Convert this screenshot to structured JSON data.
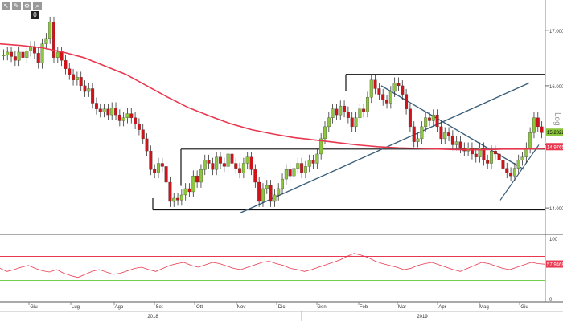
{
  "toolbar": {
    "icons": [
      "cursor-icon",
      "pencil-icon",
      "settings-icon",
      "zoom-icon"
    ],
    "glyphs": [
      "↖",
      "✎",
      "⚙",
      "⌕"
    ],
    "flag_label": "0"
  },
  "chart_data": {
    "type": "candlestick",
    "scale": "log",
    "scale_label": "Log",
    "price_axis": {
      "ticks": [
        "17.0000",
        "16.0000",
        "15.0000",
        "14.0000"
      ],
      "tick_values": [
        17.0,
        16.0,
        15.0,
        14.0
      ],
      "range": [
        13.65,
        17.45
      ]
    },
    "current_price_label": "15.2022",
    "ma_price_label": "14.9765",
    "x_axis": {
      "month_labels": [
        "Giu",
        "Lug",
        "Ago",
        "Set",
        "Ott",
        "Nov",
        "Dic",
        "Gen",
        "Feb",
        "Mar",
        "Apr",
        "Mag",
        "Giu"
      ],
      "year_labels": [
        "2018",
        "2019"
      ]
    },
    "ohlc_closes_approx": [
      16.55,
      16.6,
      16.52,
      16.45,
      16.6,
      16.5,
      16.62,
      16.7,
      16.58,
      16.4,
      16.75,
      16.85,
      17.15,
      16.5,
      16.6,
      16.45,
      16.3,
      16.2,
      16.1,
      16.15,
      16.0,
      15.9,
      15.95,
      15.7,
      15.6,
      15.55,
      15.6,
      15.5,
      15.62,
      15.5,
      15.4,
      15.45,
      15.52,
      15.45,
      15.35,
      15.25,
      15.1,
      14.9,
      14.6,
      14.55,
      14.7,
      14.65,
      14.4,
      14.1,
      14.15,
      14.12,
      14.2,
      14.3,
      14.25,
      14.5,
      14.4,
      14.6,
      14.75,
      14.7,
      14.6,
      14.8,
      14.7,
      14.65,
      14.85,
      14.7,
      14.62,
      14.55,
      14.7,
      14.8,
      14.6,
      14.4,
      14.1,
      14.3,
      14.35,
      14.1,
      14.2,
      14.3,
      14.45,
      14.6,
      14.5,
      14.62,
      14.7,
      14.55,
      14.65,
      14.75,
      14.7,
      14.85,
      15.1,
      15.3,
      15.45,
      15.6,
      15.5,
      15.65,
      15.55,
      15.45,
      15.3,
      15.45,
      15.6,
      15.55,
      15.8,
      16.1,
      15.95,
      15.85,
      15.75,
      15.7,
      15.9,
      16.05,
      16.0,
      15.85,
      15.6,
      15.3,
      15.05,
      15.1,
      15.3,
      15.45,
      15.4,
      15.5,
      15.3,
      15.1,
      15.2,
      15.15,
      15.0,
      15.05,
      14.95,
      14.9,
      14.95,
      14.85,
      14.8,
      14.95,
      14.75,
      14.7,
      14.9,
      14.85,
      14.75,
      14.62,
      14.55,
      14.5,
      14.62,
      14.75,
      14.8,
      14.95,
      15.2,
      15.45,
      15.3,
      15.2
    ],
    "moving_average_approx": [
      16.75,
      16.72,
      16.68,
      16.6,
      16.5,
      16.35,
      16.2,
      16.0,
      15.8,
      15.62,
      15.48,
      15.35,
      15.25,
      15.18,
      15.12,
      15.08,
      15.04,
      15.0,
      14.97,
      14.95,
      14.94,
      14.93,
      14.92,
      14.92,
      14.93,
      14.93,
      14.94
    ],
    "oscillator": {
      "ticks": [
        "100",
        "0"
      ],
      "range": [
        0,
        100
      ],
      "upper_level": 70,
      "lower_level": 30,
      "current_label": "57.9468",
      "values_approx": [
        50,
        45,
        48,
        52,
        55,
        50,
        46,
        44,
        48,
        42,
        38,
        35,
        40,
        45,
        48,
        44,
        40,
        42,
        46,
        50,
        52,
        48,
        45,
        50,
        55,
        58,
        60,
        55,
        52,
        56,
        60,
        58,
        54,
        50,
        48,
        52,
        56,
        60,
        62,
        58,
        55,
        50,
        48,
        45,
        48,
        52,
        56,
        60,
        64,
        70,
        75,
        72,
        68,
        62,
        58,
        55,
        52,
        48,
        50,
        55,
        58,
        60,
        56,
        52,
        48,
        45,
        50,
        55,
        60,
        58,
        54,
        50,
        48,
        52,
        56,
        60,
        58,
        57
      ]
    },
    "lines": [
      "horizontal-top",
      "horizontal-mid",
      "horizontal-bottom",
      "short-horizontal",
      "rising-trendline",
      "falling-trendline",
      "mini-uptrend",
      "upper-trendline"
    ]
  }
}
